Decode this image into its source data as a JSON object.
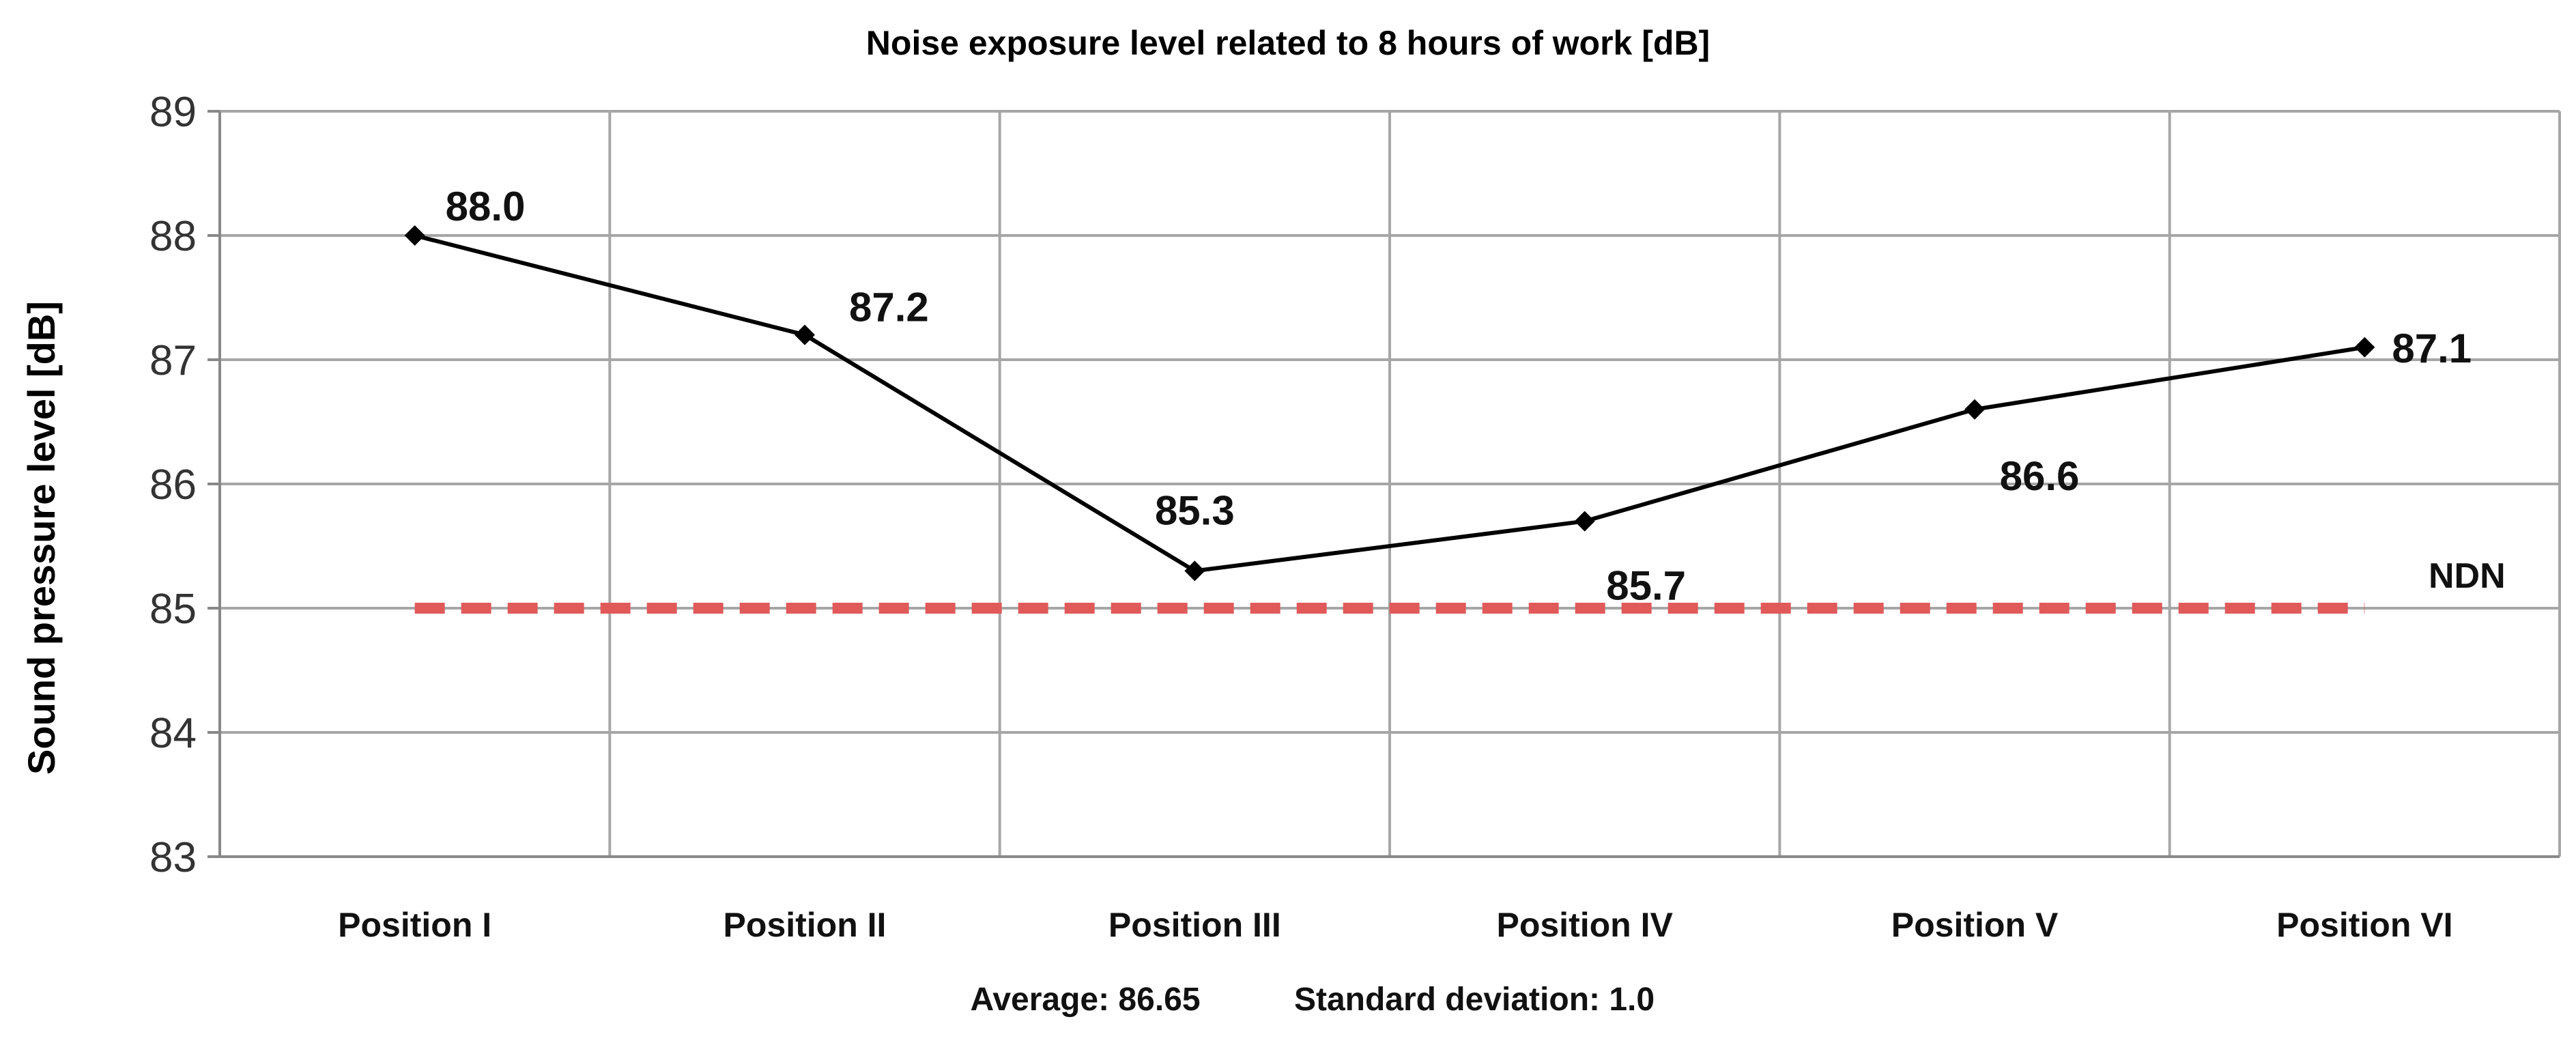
{
  "chart_data": {
    "type": "line",
    "title": "Noise exposure level related to 8 hours of work [dB]",
    "xlabel": "",
    "ylabel": "Sound pressure level [dB]",
    "ylim": [
      83,
      89
    ],
    "yticks": [
      83,
      84,
      85,
      86,
      87,
      88,
      89
    ],
    "grid": true,
    "categories": [
      "Position I",
      "Position II",
      "Position III",
      "Position IV",
      "Position V",
      "Position VI"
    ],
    "series": [
      {
        "name": "",
        "values": [
          88.0,
          87.2,
          85.3,
          85.7,
          86.6,
          87.1
        ],
        "labels": [
          "88.0",
          "87.2",
          "85.3",
          "85.7",
          "86.6",
          "87.1"
        ],
        "color": "#000000"
      }
    ],
    "reference_line": {
      "label": "NDN",
      "value": 85,
      "color": "#e05a5a",
      "style": "dashed"
    },
    "footer": {
      "average": "Average: 86.65",
      "std": "Standard deviation: 1.0"
    }
  }
}
